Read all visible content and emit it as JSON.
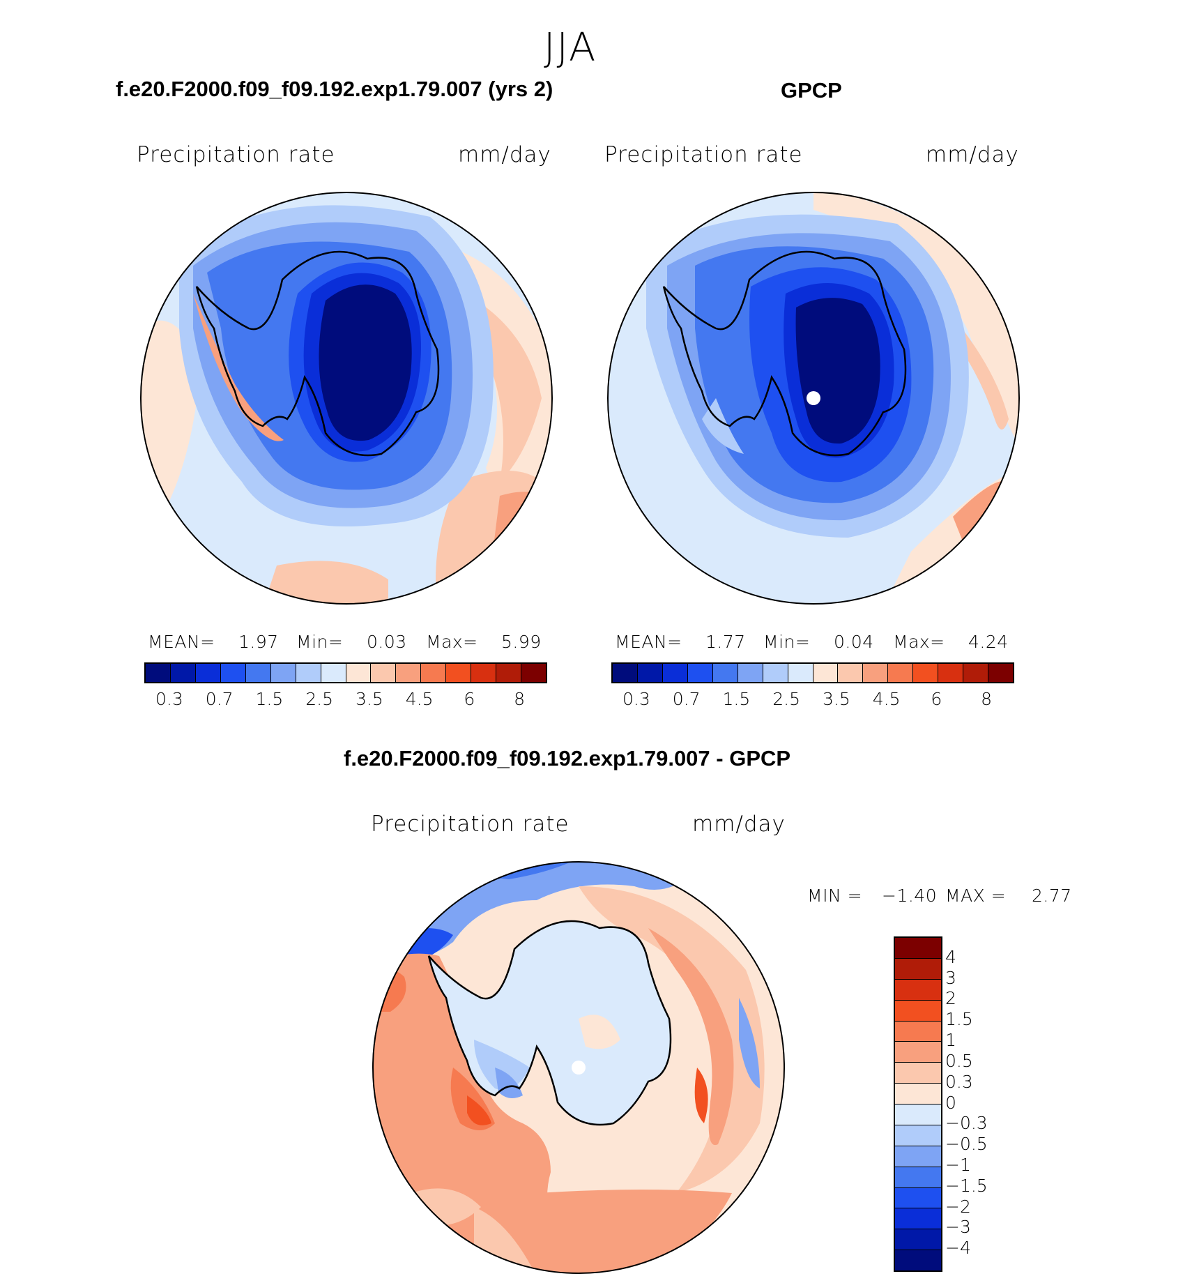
{
  "season": "JJA",
  "panels": {
    "model": {
      "title": "f.e20.F2000.f09_f09.192.exp1.79.007 (yrs 2)",
      "variable": "Precipitation  rate",
      "units": "mm/day",
      "stats": {
        "mean_label": "MEAN=",
        "mean": "1.97",
        "min_label": "Min=",
        "min": "0.03",
        "max_label": "Max=",
        "max": "5.99"
      }
    },
    "obs": {
      "title": "GPCP",
      "variable": "Precipitation  rate",
      "units": "mm/day",
      "stats": {
        "mean_label": "MEAN=",
        "mean": "1.77",
        "min_label": "Min=",
        "min": "0.04",
        "max_label": "Max=",
        "max": "4.24"
      }
    },
    "diff": {
      "title": "f.e20.F2000.f09_f09.192.exp1.79.007 - GPCP",
      "variable": "Precipitation  rate",
      "units": "mm/day",
      "stats": {
        "min_label": "MIN  =",
        "min": "−1.40",
        "max_label": "MAX  =",
        "max": "2.77"
      }
    }
  },
  "abs_colorbar": {
    "colors": [
      "#000c7c",
      "#0018a8",
      "#0a2ed8",
      "#1e50f0",
      "#4478f0",
      "#7ea4f4",
      "#b0ccfa",
      "#daeafc",
      "#fde6d6",
      "#fbc8ae",
      "#f8a07e",
      "#f67a50",
      "#f25020",
      "#d83010",
      "#b01c08",
      "#7c0000"
    ],
    "labels": [
      "0.3",
      "0.7",
      "1.5",
      "2.5",
      "3.5",
      "4.5",
      "6",
      "8"
    ]
  },
  "diff_colorbar": {
    "colors": [
      "#7c0000",
      "#b01c08",
      "#d83010",
      "#f25020",
      "#f67a50",
      "#f8a07e",
      "#fbc8ae",
      "#fde6d6",
      "#daeafc",
      "#b0ccfa",
      "#7ea4f4",
      "#4478f0",
      "#1e50f0",
      "#0a2ed8",
      "#0018a8",
      "#000c7c"
    ],
    "labels": [
      "4",
      "3",
      "2",
      "1.5",
      "1",
      "0.5",
      "0.3",
      "0",
      "−0.3",
      "−0.5",
      "−1",
      "−1.5",
      "−2",
      "−3",
      "−4"
    ]
  }
}
